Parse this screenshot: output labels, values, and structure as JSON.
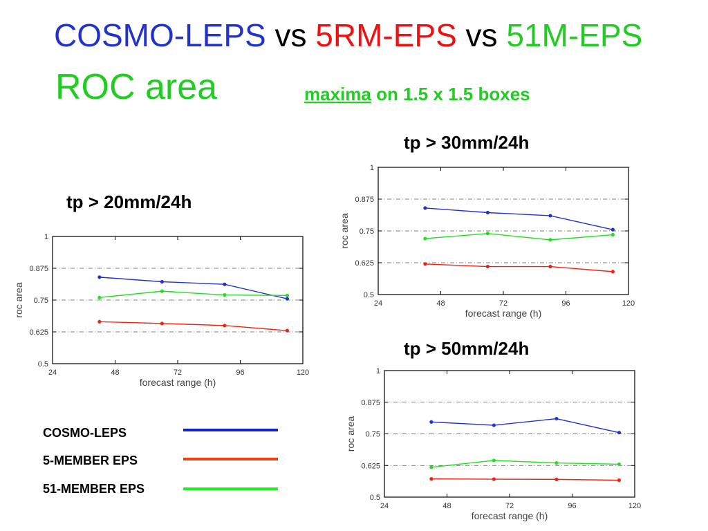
{
  "title": {
    "part1": "COSMO-LEPS",
    "vs1": " vs ",
    "part2": "5RM-EPS",
    "vs2": " vs ",
    "part3": "51M-EPS",
    "line2": "ROC area",
    "subtitle_u": "maxima",
    "subtitle_rest": " on 1.5 x 1.5 boxes"
  },
  "colors": {
    "cosmo": "#2233cc",
    "rm5": "#ee2211",
    "m51": "#22dd22",
    "title_blue": "#2233cc",
    "title_red": "#ee1111",
    "title_green": "#22cc22",
    "legend_blue": "#1122cc",
    "legend_red": "#ee4411",
    "legend_green": "#22ee22"
  },
  "legend": [
    {
      "label": "COSMO-LEPS",
      "color_key": "legend_blue"
    },
    {
      "label": "5-MEMBER EPS",
      "color_key": "legend_red"
    },
    {
      "label": "51-MEMBER EPS",
      "color_key": "legend_green"
    }
  ],
  "chart_data": [
    {
      "type": "line",
      "title": "tp > 20mm/24h",
      "xlabel": "forecast range (h)",
      "ylabel": "roc area",
      "xlim": [
        24,
        120
      ],
      "ylim": [
        0.5,
        1
      ],
      "xticks": [
        "24",
        "48",
        "72",
        "96",
        "120"
      ],
      "yticks": [
        "0.5",
        "0.625",
        "0.75",
        "0.875",
        "1"
      ],
      "grid": "dash-dot at 0.625, 0.75, 0.875",
      "x": [
        42,
        66,
        90,
        114
      ],
      "series": [
        {
          "key": "cosmo",
          "values": [
            0.84,
            0.822,
            0.812,
            0.755
          ]
        },
        {
          "key": "rm5",
          "values": [
            0.665,
            0.658,
            0.65,
            0.63
          ]
        },
        {
          "key": "m51",
          "values": [
            0.76,
            0.785,
            0.77,
            0.768
          ]
        }
      ]
    },
    {
      "type": "line",
      "title": "tp > 30mm/24h",
      "xlabel": "forecast range (h)",
      "ylabel": "roc area",
      "xlim": [
        24,
        120
      ],
      "ylim": [
        0.5,
        1
      ],
      "xticks": [
        "24",
        "48",
        "72",
        "96",
        "120"
      ],
      "yticks": [
        "0.5",
        "0.625",
        "0.75",
        "0.875",
        "1"
      ],
      "grid": "dash-dot at 0.625, 0.75, 0.875",
      "x": [
        42,
        66,
        90,
        114
      ],
      "series": [
        {
          "key": "cosmo",
          "values": [
            0.84,
            0.822,
            0.81,
            0.755
          ]
        },
        {
          "key": "rm5",
          "values": [
            0.62,
            0.61,
            0.61,
            0.59
          ]
        },
        {
          "key": "m51",
          "values": [
            0.72,
            0.74,
            0.715,
            0.735
          ]
        }
      ]
    },
    {
      "type": "line",
      "title": "tp > 50mm/24h",
      "xlabel": "forecast range (h)",
      "ylabel": "roc area",
      "xlim": [
        24,
        120
      ],
      "ylim": [
        0.5,
        1
      ],
      "xticks": [
        "24",
        "48",
        "72",
        "96",
        "120"
      ],
      "yticks": [
        "0.5",
        "0.625",
        "0.75",
        "0.875",
        "1"
      ],
      "grid": "dash-dot at 0.625, 0.75, 0.875",
      "x": [
        42,
        66,
        90,
        114
      ],
      "series": [
        {
          "key": "cosmo",
          "values": [
            0.797,
            0.784,
            0.81,
            0.755
          ]
        },
        {
          "key": "rm5",
          "values": [
            0.572,
            0.571,
            0.57,
            0.567
          ]
        },
        {
          "key": "m51",
          "values": [
            0.618,
            0.645,
            0.635,
            0.63
          ]
        }
      ]
    }
  ]
}
